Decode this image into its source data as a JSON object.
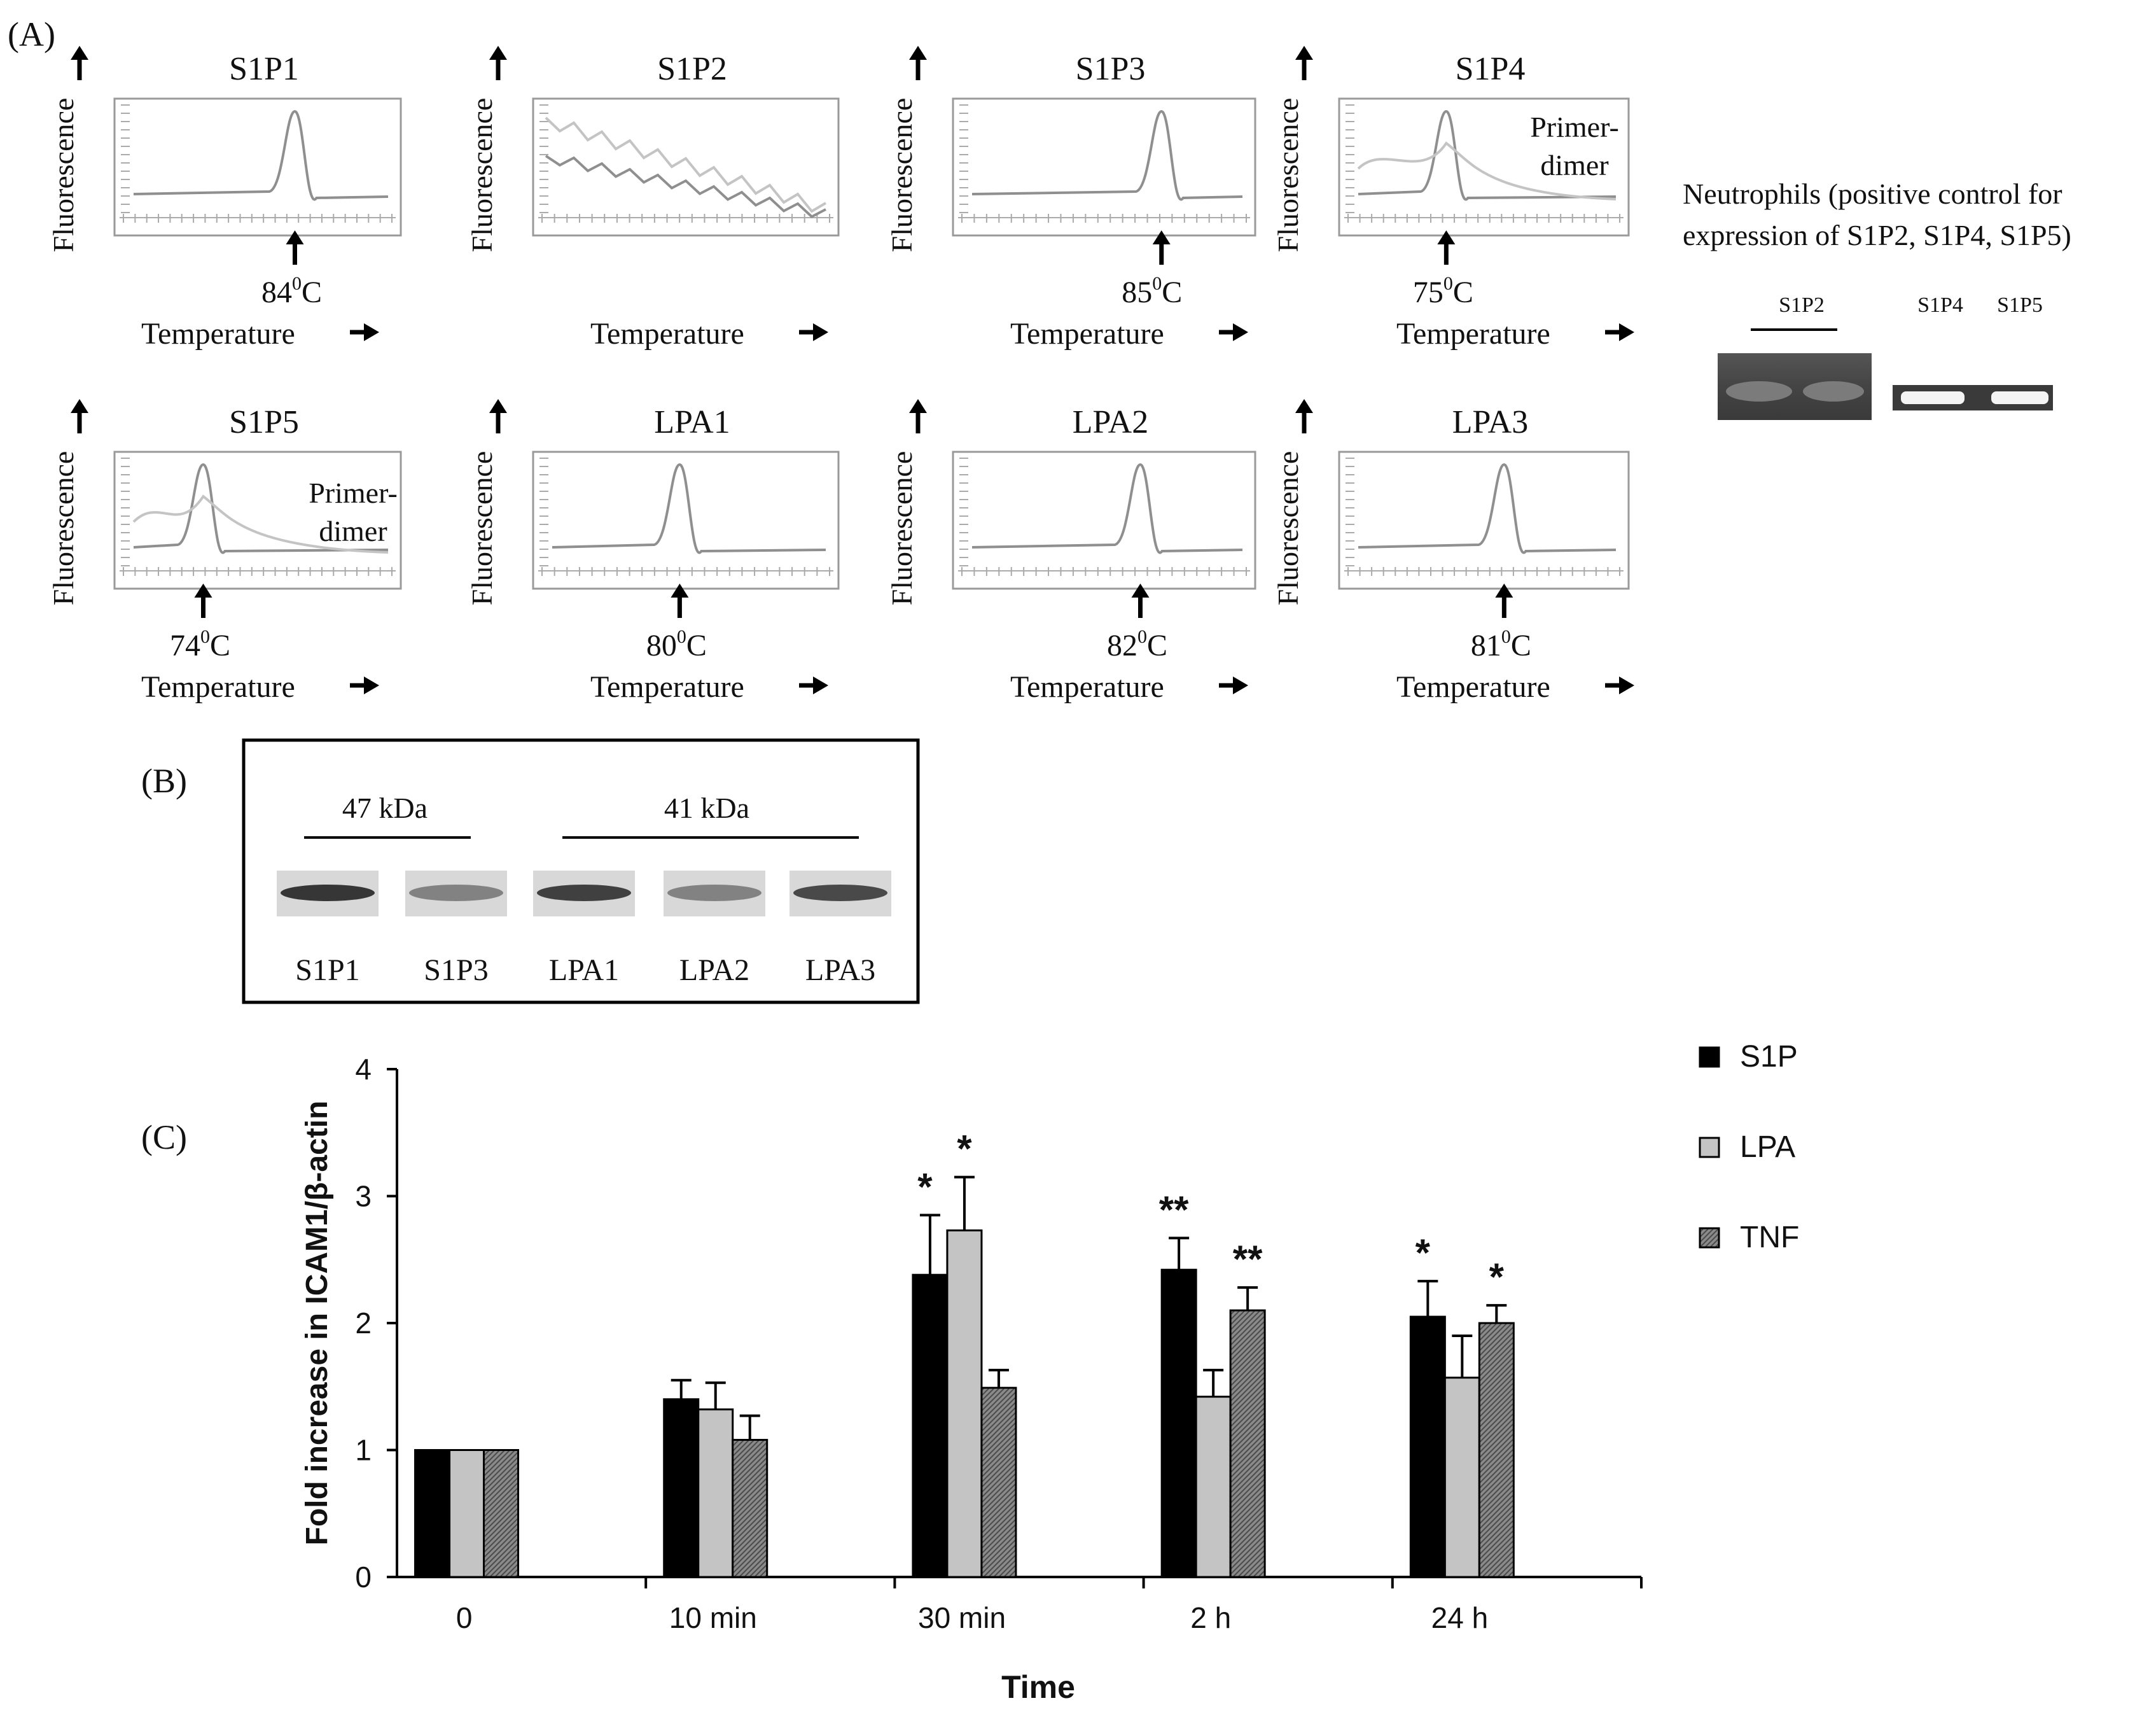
{
  "panel_a": {
    "label": "(A)",
    "y_axis_label": "Fluorescence",
    "x_axis_label": "Temperature",
    "plots": [
      {
        "title": "S1P1",
        "peak": "84",
        "unit": "C",
        "note": ""
      },
      {
        "title": "S1P2",
        "peak": "",
        "unit": "",
        "note": ""
      },
      {
        "title": "S1P3",
        "peak": "85",
        "unit": "C",
        "note": ""
      },
      {
        "title": "S1P4",
        "peak": "75",
        "unit": "C",
        "note": "Primer-dimer"
      },
      {
        "title": "S1P5",
        "peak": "74",
        "unit": "C",
        "note": "Primer-dimer"
      },
      {
        "title": "LPA1",
        "peak": "80",
        "unit": "C",
        "note": ""
      },
      {
        "title": "LPA2",
        "peak": "82",
        "unit": "C",
        "note": ""
      },
      {
        "title": "LPA3",
        "peak": "81",
        "unit": "C",
        "note": ""
      }
    ],
    "primer_dimer_line1": "Primer-",
    "primer_dimer_line2": "dimer",
    "degree_sup": "0",
    "neutrophils_line1": "Neutrophils (positive control for",
    "neutrophils_line2": "expression of S1P2, S1P4, S1P5)",
    "gel_labels": [
      "S1P2",
      "S1P4",
      "S1P5"
    ]
  },
  "panel_b": {
    "label": "(B)",
    "size_left": "47 kDa",
    "size_right": "41 kDa",
    "lanes": [
      "S1P1",
      "S1P3",
      "LPA1",
      "LPA2",
      "LPA3"
    ]
  },
  "panel_c": {
    "label": "(C)"
  },
  "chart_data": {
    "type": "bar",
    "title": "",
    "xlabel": "Time",
    "ylabel": "Fold increase in ICAM1/β-actin",
    "ylim": [
      0,
      4
    ],
    "yticks": [
      "0",
      "1",
      "2",
      "3",
      "4"
    ],
    "categories": [
      "0",
      "10 min",
      "30 min",
      "2 h",
      "24 h"
    ],
    "series": [
      {
        "name": "S1P",
        "color": "#000000",
        "values": [
          1.0,
          1.4,
          2.38,
          2.42,
          2.05
        ],
        "errors": [
          0,
          0.15,
          0.47,
          0.25,
          0.28
        ],
        "sig": [
          "",
          "",
          "*",
          "**",
          "*"
        ]
      },
      {
        "name": "LPA",
        "color": "#c4c4c4",
        "values": [
          1.0,
          1.32,
          2.73,
          1.42,
          1.57
        ],
        "errors": [
          0,
          0.21,
          0.42,
          0.21,
          0.33
        ],
        "sig": [
          "",
          "",
          "*",
          "",
          ""
        ]
      },
      {
        "name": "TNF",
        "color": "#7a7a7a",
        "values": [
          1.0,
          1.08,
          1.49,
          2.1,
          2.0
        ],
        "errors": [
          0,
          0.19,
          0.14,
          0.18,
          0.14
        ],
        "sig": [
          "",
          "",
          "",
          "**",
          "*"
        ]
      }
    ],
    "legend_position": "top-right"
  }
}
